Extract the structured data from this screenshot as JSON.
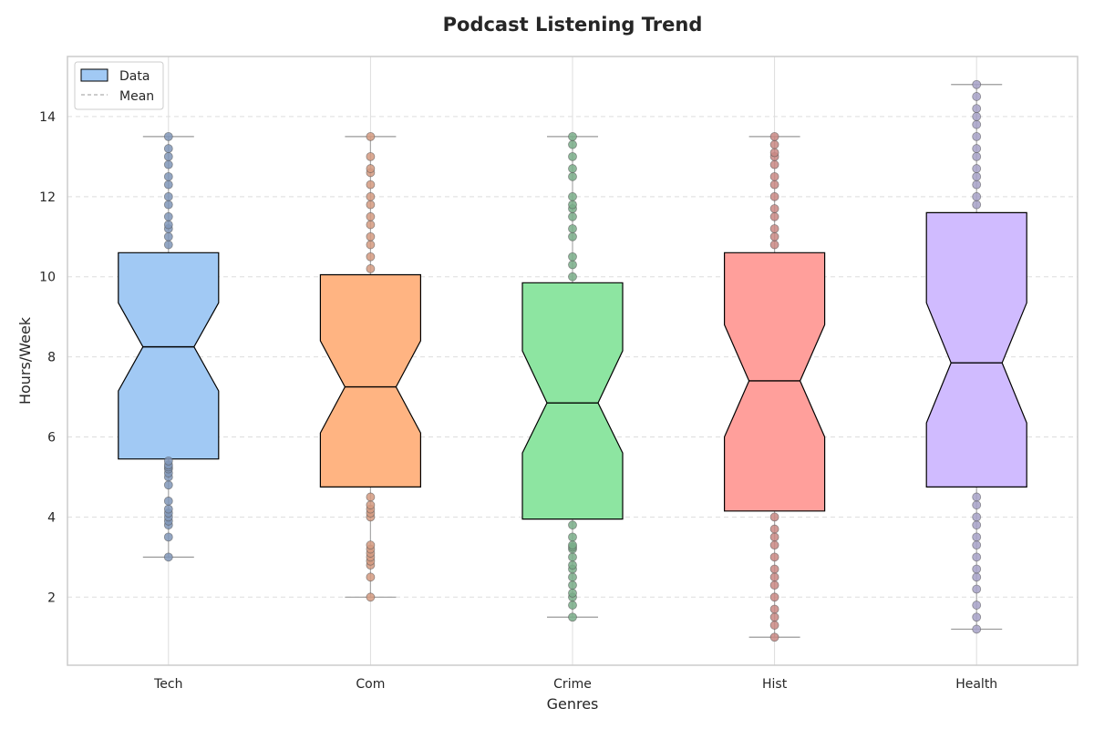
{
  "chart_data": {
    "type": "boxplot",
    "title": "Podcast Listening Trend",
    "xlabel": "Genres",
    "ylabel": "Hours/Week",
    "categories": [
      "Tech",
      "Com",
      "Crime",
      "Hist",
      "Health"
    ],
    "ylim": [
      0.3,
      15.5
    ],
    "yticks": [
      2,
      4,
      6,
      8,
      10,
      12,
      14
    ],
    "grid": true,
    "legend": {
      "placement": "top-left",
      "entries": [
        "Data",
        "Mean"
      ]
    },
    "colors": [
      "#a1c9f4",
      "#ffb482",
      "#8de5a1",
      "#ff9f9b",
      "#d0bbff"
    ],
    "point_colors": [
      "#8096b8",
      "#d49a80",
      "#79ad88",
      "#c98884",
      "#a7a2c8"
    ],
    "boxes": [
      {
        "whisker_low": 3.0,
        "q1": 5.45,
        "median": 8.25,
        "q3": 10.6,
        "whisker_high": 13.5,
        "notch": [
          7.15,
          9.35
        ]
      },
      {
        "whisker_low": 2.0,
        "q1": 4.75,
        "median": 7.25,
        "q3": 10.05,
        "whisker_high": 13.5,
        "notch": [
          6.1,
          8.4
        ]
      },
      {
        "whisker_low": 1.5,
        "q1": 3.95,
        "median": 6.85,
        "q3": 9.85,
        "whisker_high": 13.5,
        "notch": [
          5.6,
          8.15
        ]
      },
      {
        "whisker_low": 1.0,
        "q1": 4.15,
        "median": 7.4,
        "q3": 10.6,
        "whisker_high": 13.5,
        "notch": [
          6.0,
          8.8
        ]
      },
      {
        "whisker_low": 1.2,
        "q1": 4.75,
        "median": 7.85,
        "q3": 11.6,
        "whisker_high": 14.8,
        "notch": [
          6.35,
          9.35
        ]
      }
    ],
    "points": [
      [
        3.0,
        3.5,
        3.8,
        3.9,
        4.0,
        4.1,
        4.2,
        4.4,
        4.8,
        5.0,
        5.1,
        5.2,
        5.25,
        5.3,
        5.4,
        10.8,
        11.0,
        11.2,
        11.3,
        11.5,
        11.8,
        12.0,
        12.3,
        12.5,
        12.8,
        13.0,
        13.2,
        13.5
      ],
      [
        2.0,
        2.5,
        2.8,
        2.9,
        3.0,
        3.1,
        3.2,
        3.3,
        4.0,
        4.1,
        4.2,
        4.3,
        4.5,
        10.2,
        10.5,
        10.8,
        11.0,
        11.3,
        11.5,
        11.8,
        12.0,
        12.3,
        12.6,
        12.7,
        13.0,
        13.5
      ],
      [
        1.5,
        1.8,
        2.0,
        2.1,
        2.3,
        2.5,
        2.7,
        2.8,
        3.0,
        3.2,
        3.25,
        3.3,
        3.5,
        3.8,
        10.0,
        10.3,
        10.5,
        11.0,
        11.2,
        11.5,
        11.7,
        11.8,
        12.0,
        12.5,
        12.7,
        13.0,
        13.3,
        13.5
      ],
      [
        1.0,
        1.3,
        1.5,
        1.7,
        2.0,
        2.3,
        2.5,
        2.7,
        3.0,
        3.3,
        3.5,
        3.7,
        4.0,
        10.8,
        11.0,
        11.2,
        11.5,
        11.7,
        12.0,
        12.3,
        12.5,
        12.8,
        13.0,
        13.1,
        13.3,
        13.5
      ],
      [
        1.2,
        1.5,
        1.8,
        2.2,
        2.5,
        2.7,
        3.0,
        3.3,
        3.5,
        3.8,
        4.0,
        4.3,
        4.5,
        11.8,
        12.0,
        12.3,
        12.5,
        12.7,
        13.0,
        13.2,
        13.5,
        13.8,
        14.0,
        14.2,
        14.5,
        14.8
      ]
    ]
  }
}
